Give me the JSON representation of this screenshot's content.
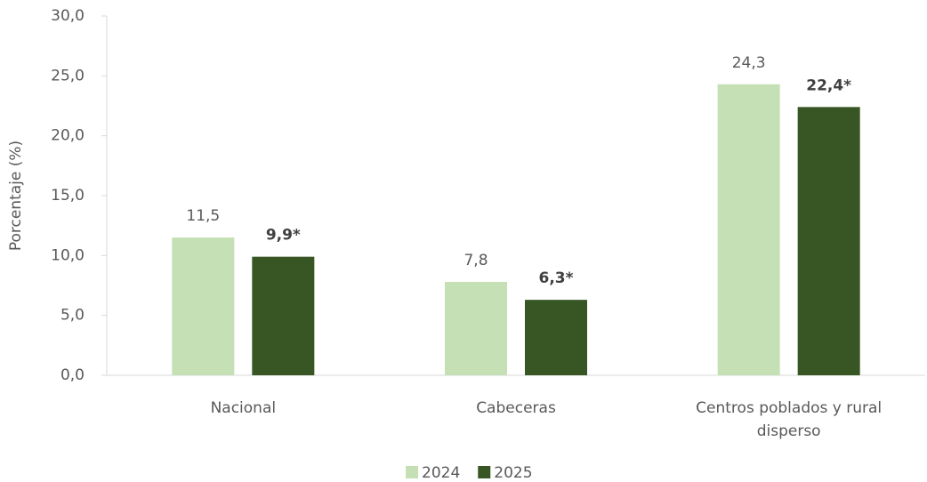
{
  "chart_data": {
    "type": "bar",
    "y_label": "Porcentaje (%)",
    "categories": [
      "Nacional",
      "Cabeceras",
      "Centros poblados y rural disperso"
    ],
    "series": [
      {
        "name": "2024",
        "color": "#c5e0b4",
        "values": [
          11.5,
          7.8,
          24.3
        ],
        "value_labels": [
          "11,5",
          "7,8",
          "24,3"
        ],
        "value_label_bold": false
      },
      {
        "name": "2025",
        "color": "#375623",
        "values": [
          9.9,
          6.3,
          22.4
        ],
        "value_labels": [
          "9,9*",
          "6,3*",
          "22,4*"
        ],
        "value_label_bold": true
      }
    ],
    "ylim": [
      0,
      30
    ],
    "yticks": [
      {
        "value": 0,
        "label": "0,0"
      },
      {
        "value": 5,
        "label": "5,0"
      },
      {
        "value": 10,
        "label": "10,0"
      },
      {
        "value": 15,
        "label": "15,0"
      },
      {
        "value": 20,
        "label": "20,0"
      },
      {
        "value": 25,
        "label": "25,0"
      },
      {
        "value": 30,
        "label": "30,0"
      }
    ],
    "grid": false,
    "legend": "bottom"
  }
}
